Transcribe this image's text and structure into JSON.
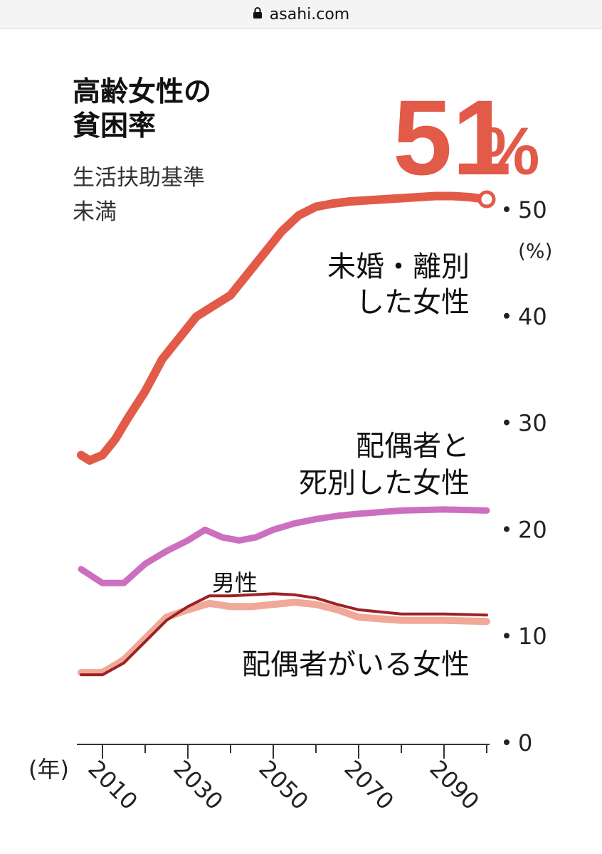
{
  "browser": {
    "url": "asahi.com"
  },
  "headline": {
    "title_lines": [
      "高齢女性の",
      "貧困率"
    ],
    "subtitle_lines": [
      "生活扶助基準",
      "未満"
    ],
    "highlight_number": "51",
    "highlight_unit": "%"
  },
  "chart_data": {
    "type": "line",
    "title": "高齢女性の貧困率",
    "subtitle": "生活扶助基準未満",
    "xlabel": "(年)",
    "ylabel": "(%)",
    "ylim": [
      0,
      50
    ],
    "xlim": [
      2005,
      2100
    ],
    "x_ticks": [
      2010,
      2030,
      2050,
      2070,
      2090
    ],
    "y_ticks": [
      0,
      10,
      20,
      30,
      40,
      50
    ],
    "series": [
      {
        "name": "未婚・離別した女性",
        "label_lines": [
          "未婚・離別",
          "した女性"
        ],
        "color": "#e25a48",
        "x": [
          2005,
          2007,
          2010,
          2013,
          2016,
          2020,
          2024,
          2028,
          2032,
          2036,
          2040,
          2044,
          2048,
          2052,
          2056,
          2060,
          2064,
          2068,
          2072,
          2076,
          2080,
          2084,
          2088,
          2092,
          2096,
          2100
        ],
        "values": [
          27.0,
          26.5,
          27.0,
          28.5,
          30.5,
          33.0,
          36.0,
          38.0,
          40.0,
          41.0,
          42.0,
          44.0,
          46.0,
          48.0,
          49.5,
          50.3,
          50.6,
          50.8,
          50.9,
          51.0,
          51.1,
          51.2,
          51.3,
          51.3,
          51.2,
          51.0
        ]
      },
      {
        "name": "配偶者と死別した女性",
        "label_lines": [
          "配偶者と",
          "死別した女性"
        ],
        "color": "#cc6fbe",
        "x": [
          2005,
          2010,
          2015,
          2020,
          2025,
          2030,
          2034,
          2038,
          2042,
          2046,
          2050,
          2055,
          2060,
          2065,
          2070,
          2080,
          2090,
          2100
        ],
        "values": [
          16.3,
          15.0,
          15.0,
          16.8,
          18.0,
          19.0,
          20.0,
          19.3,
          19.0,
          19.3,
          20.0,
          20.6,
          21.0,
          21.3,
          21.5,
          21.8,
          21.9,
          21.8
        ]
      },
      {
        "name": "男性",
        "label_lines": [
          "男性"
        ],
        "color": "#9c2323",
        "x": [
          2005,
          2010,
          2015,
          2020,
          2025,
          2030,
          2035,
          2040,
          2045,
          2050,
          2055,
          2060,
          2065,
          2070,
          2080,
          2090,
          2100
        ],
        "values": [
          6.4,
          6.4,
          7.5,
          9.5,
          11.5,
          12.8,
          13.8,
          13.8,
          13.9,
          14.0,
          13.9,
          13.6,
          13.0,
          12.5,
          12.1,
          12.1,
          12.0
        ]
      },
      {
        "name": "配偶者がいる女性",
        "label_lines": [
          "配偶者がいる女性"
        ],
        "color": "#f0a898",
        "x": [
          2005,
          2010,
          2015,
          2020,
          2025,
          2030,
          2035,
          2040,
          2045,
          2050,
          2055,
          2060,
          2065,
          2070,
          2080,
          2090,
          2100
        ],
        "values": [
          6.6,
          6.6,
          7.8,
          9.8,
          11.8,
          12.5,
          13.1,
          12.8,
          12.8,
          13.0,
          13.2,
          13.0,
          12.5,
          11.8,
          11.5,
          11.5,
          11.4
        ]
      }
    ]
  }
}
